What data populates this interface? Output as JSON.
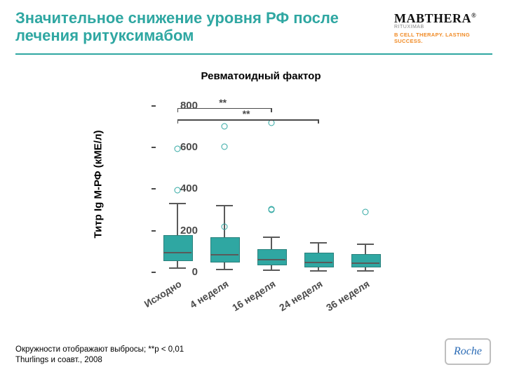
{
  "colors": {
    "teal": "#2fa7a2",
    "orange": "#f08a24",
    "grey": "#888888",
    "axis": "#4a4a4a",
    "brand_black": "#111111",
    "outlier": "#2fa7a2",
    "roche_blue": "#2a6bb5",
    "roche_border": "#bfbfbf"
  },
  "title": "Значительное снижение уровня РФ после лечения ритуксимабом",
  "brand": {
    "main": "MABTHERA",
    "sub": "RITUXIMAB",
    "tag": "B CELL THERAPY. LASTING SUCCESS."
  },
  "chart": {
    "type": "boxplot",
    "title": "Ревматоидный фактор",
    "ylabel": "Титр Ig M-РФ (кМЕ/л)",
    "ylim": [
      0,
      850
    ],
    "yticks": [
      0,
      200,
      400,
      600,
      800
    ],
    "categories": [
      "Исходно",
      "4 неделя",
      "16 неделя",
      "24 неделя",
      "36 неделя"
    ],
    "box_fill": "#2fa7a2",
    "box_border": "#2a807c",
    "median_color": "#5a5a5a",
    "whisker_color": "#5a5a5a",
    "bg": "#ffffff",
    "series": [
      {
        "q1": 60,
        "median": 95,
        "q3": 180,
        "lo": 20,
        "hi": 330,
        "outliers": [
          595,
          395
        ]
      },
      {
        "q1": 55,
        "median": 85,
        "q3": 170,
        "lo": 15,
        "hi": 320,
        "outliers": [
          700,
          605,
          220
        ]
      },
      {
        "q1": 40,
        "median": 60,
        "q3": 110,
        "lo": 10,
        "hi": 170,
        "outliers": [
          720,
          300,
          305
        ]
      },
      {
        "q1": 32,
        "median": 48,
        "q3": 95,
        "lo": 8,
        "hi": 140,
        "outliers": []
      },
      {
        "q1": 30,
        "median": 45,
        "q3": 88,
        "lo": 6,
        "hi": 135,
        "outliers": [
          290
        ]
      }
    ],
    "sig": [
      {
        "from": 0,
        "to": 2,
        "y": 790,
        "label": "**"
      },
      {
        "from": 0,
        "to": 3,
        "y": 735,
        "label": "**"
      }
    ]
  },
  "footnote": {
    "line1": "Окружности отображают выбросы; **p < 0,01",
    "line2": "Thurlings и соавт., 2008"
  },
  "logo": "Roche"
}
